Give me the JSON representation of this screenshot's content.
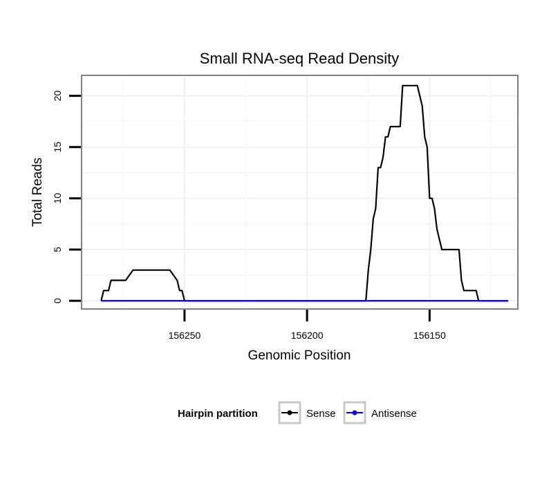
{
  "chart_data": {
    "type": "line",
    "title": "Small RNA-seq Read Density",
    "xlabel": "Genomic Position",
    "ylabel": "Total Reads",
    "x_reversed": true,
    "xlim": [
      156292,
      156114
    ],
    "ylim": [
      -0.8,
      22
    ],
    "xticks": [
      156250,
      156200,
      156150
    ],
    "yticks": [
      0,
      5,
      10,
      15,
      20
    ],
    "grid": true,
    "legend": {
      "title": "Hairpin partition",
      "position": "bottom",
      "entries": [
        {
          "label": "Sense",
          "color": "#000000"
        },
        {
          "label": "Antisense",
          "color": "#0000ff"
        }
      ]
    },
    "series": [
      {
        "name": "Sense",
        "color": "#000000",
        "x": [
          156284,
          156283,
          156281,
          156280,
          156277,
          156274,
          156271,
          156268,
          156264,
          156260,
          156256,
          156253,
          156252,
          156251,
          156250,
          156244,
          156240,
          156236,
          156232,
          156228,
          156224,
          156220,
          156216,
          156212,
          156208,
          156204,
          156200,
          156196,
          156192,
          156188,
          156184,
          156180,
          156176,
          156175,
          156174,
          156173,
          156172,
          156171,
          156170,
          156169,
          156168,
          156167,
          156166,
          156165,
          156164,
          156163,
          156162,
          156161,
          156160,
          156158,
          156157,
          156156,
          156155,
          156154,
          156153,
          156152,
          156151,
          156150,
          156149,
          156148,
          156147,
          156146,
          156145,
          156144,
          156143,
          156142,
          156141,
          156140,
          156139,
          156138,
          156137,
          156136,
          156135,
          156134,
          156133,
          156132,
          156131,
          156130,
          156129,
          156128,
          156127,
          156126,
          156125,
          156124,
          156123,
          156122,
          156121,
          156120,
          156118
        ],
        "values": [
          0,
          1,
          1,
          2,
          2,
          2,
          3,
          3,
          3,
          3,
          3,
          2,
          1,
          1,
          0,
          0,
          0,
          0,
          0,
          0,
          0,
          0,
          0,
          0,
          0,
          0,
          0,
          0,
          0,
          0,
          0,
          0,
          0,
          3,
          5,
          8,
          9,
          13,
          13,
          14,
          16,
          16,
          17,
          17,
          17,
          17,
          17,
          21,
          21,
          21,
          21,
          21,
          21,
          20,
          19,
          16,
          15,
          10,
          10,
          9,
          7,
          6,
          5,
          5,
          5,
          5,
          5,
          5,
          5,
          5,
          2,
          1,
          1,
          1,
          1,
          1,
          1,
          0,
          0,
          0,
          0,
          0,
          0,
          0,
          0,
          0,
          0,
          0,
          0
        ]
      },
      {
        "name": "Antisense",
        "color": "#0000ff",
        "x": [
          156284,
          156118
        ],
        "values": [
          0,
          0
        ]
      }
    ]
  }
}
